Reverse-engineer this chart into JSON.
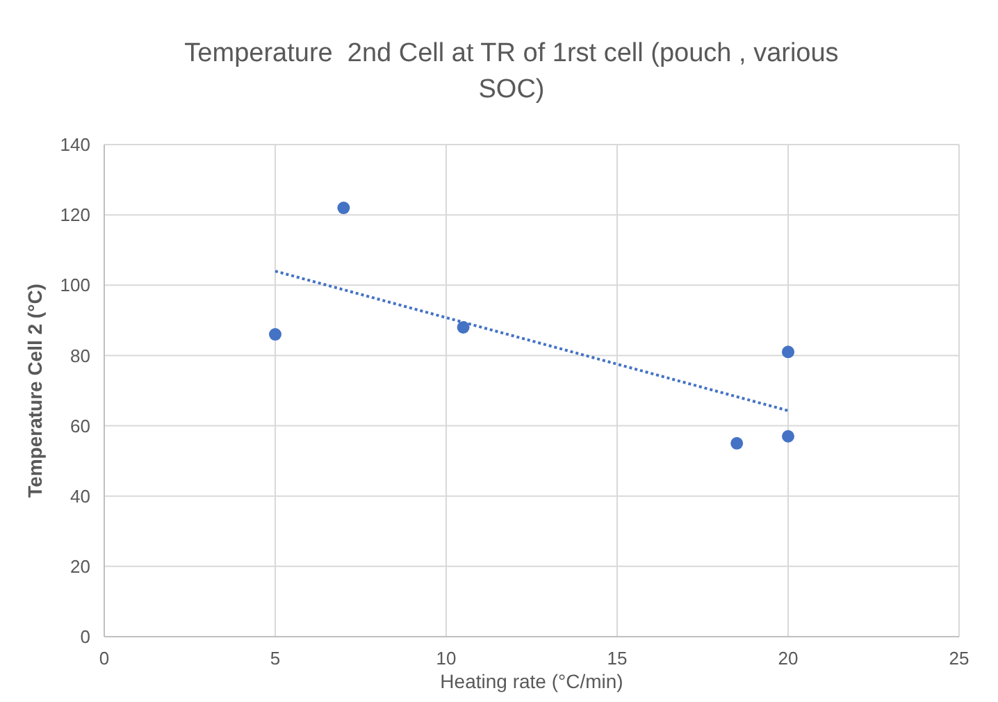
{
  "chart_data": {
    "type": "scatter",
    "title": "Temperature  2nd Cell at TR of 1rst cell (pouch , various SOC)",
    "xlabel": "Heating rate (°C/min)",
    "ylabel": "Temperature Cell 2 (°C)",
    "xlim": [
      0,
      25
    ],
    "xticks": [
      0,
      5,
      10,
      15,
      20,
      25
    ],
    "ylim": [
      0,
      140
    ],
    "yticks": [
      0,
      20,
      40,
      60,
      80,
      100,
      120,
      140
    ],
    "grid": true,
    "marker": "circle",
    "series": [
      {
        "color": "#4472c4",
        "x": [
          5,
          7,
          10.5,
          18.5,
          20,
          20
        ],
        "values": [
          86,
          122,
          88,
          55,
          57,
          81
        ]
      },
      {
        "type": "line",
        "color": "#4472c4",
        "line_style": "dotted",
        "marker": "none",
        "x": [
          5,
          20
        ],
        "values": [
          104,
          64.3
        ]
      }
    ]
  }
}
